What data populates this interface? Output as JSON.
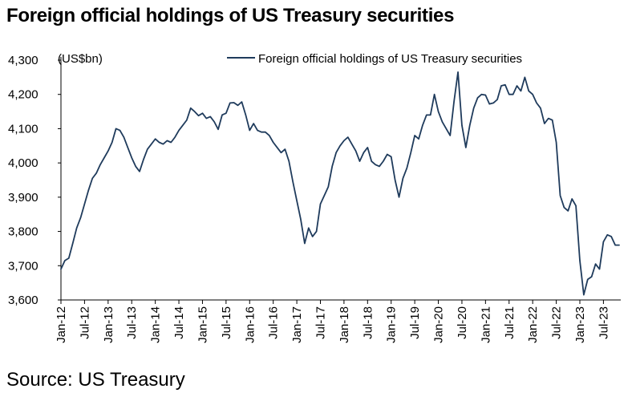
{
  "title": "Foreign official holdings of US Treasury securities",
  "source": "Source: US Treasury",
  "colors": {
    "series": "#1f3b5c",
    "axis": "#000000"
  },
  "chart_data": {
    "type": "line",
    "title": "Foreign official holdings of US Treasury securities",
    "unit_label": "(US$bn)",
    "xlabel": "",
    "ylabel": "(US$bn)",
    "ylim": [
      3600,
      4300
    ],
    "yticks": [
      3600,
      3700,
      3800,
      3900,
      4000,
      4100,
      4200,
      4300
    ],
    "ytick_labels": [
      "3,600",
      "3,700",
      "3,800",
      "3,900",
      "4,000",
      "4,100",
      "4,200",
      "4,300"
    ],
    "x_start": "Jan-12",
    "x_end": "Jul-23",
    "xtick_labels": [
      "Jan-12",
      "Jul-12",
      "Jan-13",
      "Jul-13",
      "Jan-14",
      "Jul-14",
      "Jan-15",
      "Jul-15",
      "Jan-16",
      "Jul-16",
      "Jan-17",
      "Jul-17",
      "Jan-18",
      "Jul-18",
      "Jan-19",
      "Jul-19",
      "Jan-20",
      "Jul-20",
      "Jan-21",
      "Jul-21",
      "Jan-22",
      "Jul-22",
      "Jan-23",
      "Jul-23"
    ],
    "grid": false,
    "legend_position": "top",
    "series": [
      {
        "name": "Foreign official holdings of US Treasury securities",
        "values": [
          3690,
          3715,
          3722,
          3765,
          3810,
          3840,
          3880,
          3920,
          3955,
          3970,
          3995,
          4015,
          4035,
          4060,
          4100,
          4095,
          4075,
          4045,
          4015,
          3990,
          3975,
          4010,
          4040,
          4055,
          4070,
          4060,
          4055,
          4065,
          4060,
          4075,
          4095,
          4110,
          4125,
          4160,
          4150,
          4138,
          4145,
          4130,
          4135,
          4120,
          4098,
          4140,
          4145,
          4175,
          4176,
          4168,
          4178,
          4140,
          4095,
          4115,
          4095,
          4090,
          4090,
          4080,
          4060,
          4045,
          4030,
          4040,
          4005,
          3945,
          3890,
          3835,
          3765,
          3810,
          3785,
          3800,
          3880,
          3905,
          3930,
          3990,
          4030,
          4050,
          4065,
          4075,
          4055,
          4035,
          4005,
          4030,
          4045,
          4005,
          3995,
          3990,
          4005,
          4025,
          4018,
          3950,
          3900,
          3955,
          3985,
          4030,
          4080,
          4070,
          4110,
          4140,
          4140,
          4200,
          4150,
          4120,
          4100,
          4080,
          4180,
          4265,
          4110,
          4045,
          4110,
          4160,
          4190,
          4200,
          4198,
          4172,
          4175,
          4185,
          4225,
          4228,
          4200,
          4200,
          4225,
          4210,
          4250,
          4210,
          4200,
          4175,
          4160,
          4115,
          4130,
          4125,
          4060,
          3905,
          3870,
          3860,
          3895,
          3875,
          3715,
          3615,
          3660,
          3668,
          3705,
          3690,
          3770,
          3790,
          3785,
          3760,
          3760
        ]
      }
    ]
  }
}
